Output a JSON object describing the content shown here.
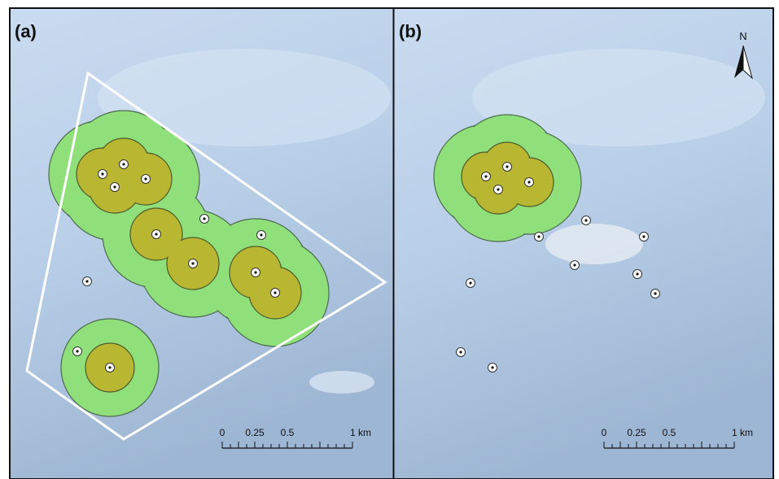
{
  "panels": [
    {
      "label": "(a)",
      "scale_labels": [
        "0",
        "0.25",
        "0.5",
        "1 km"
      ]
    },
    {
      "label": "(b)",
      "north": "N",
      "scale_labels": [
        "0",
        "0.25",
        "0.5",
        "1 km"
      ]
    }
  ]
}
